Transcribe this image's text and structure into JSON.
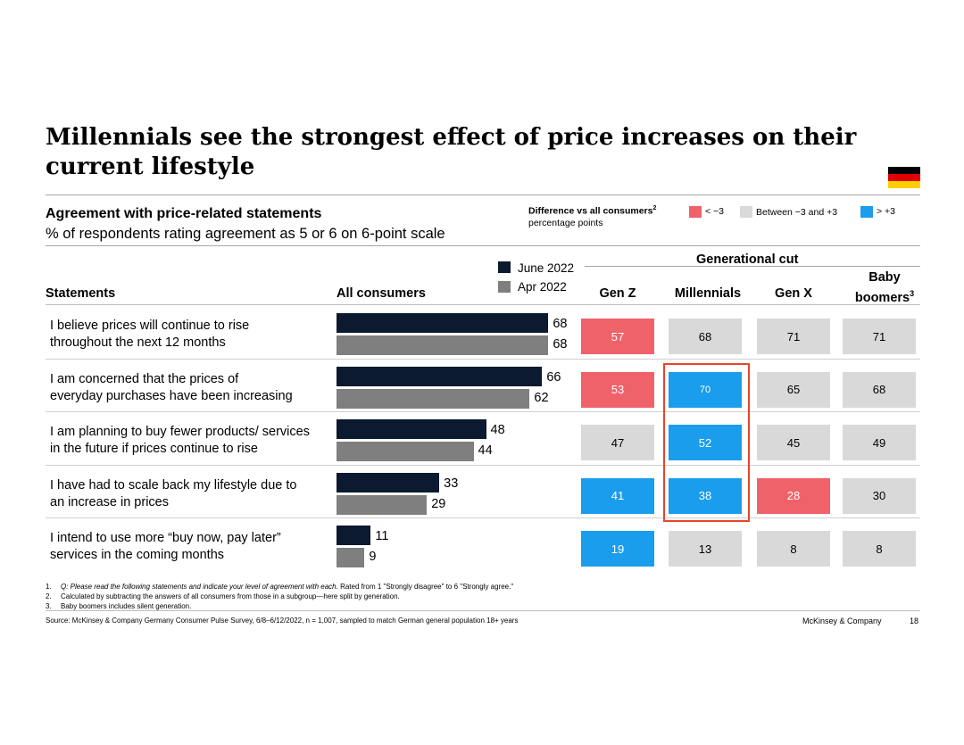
{
  "title": "Millennials see the strongest effect of price increases on their current lifestyle",
  "colors": {
    "june": "#0b1a2e",
    "april": "#7f7f7f",
    "low": "#f0626a",
    "mid": "#d9d9d9",
    "high": "#1a9dec",
    "highlight": "#e8442a"
  },
  "flag": {
    "icon": "germany-flag-icon",
    "stripes": [
      "#000000",
      "#dd0000",
      "#ffce00"
    ]
  },
  "subtitle": "Agreement with price-related statements",
  "subtitle2": "% of respondents rating agreement as 5 or 6 on 6-point scale",
  "diff_legend": {
    "title": "Difference vs all consumers",
    "title_sup": "2",
    "unit": "percentage points",
    "items": [
      {
        "key": "low",
        "label": "< −3"
      },
      {
        "key": "mid",
        "label": "Between −3 and +3"
      },
      {
        "key": "high",
        "label": "> +3"
      }
    ]
  },
  "headers": {
    "statements": "Statements",
    "all_consumers": "All consumers",
    "generational_cut": "Generational cut",
    "gen_z": "Gen Z",
    "millennials": "Millennials",
    "gen_x": "Gen X",
    "boomers_line1": "Baby",
    "boomers_line2": "boomers",
    "boomers_sup": "3"
  },
  "chart_data": {
    "type": "bar",
    "orientation": "horizontal",
    "title": "Agreement with price-related statements",
    "unit": "% of respondents rating agreement as 5 or 6 on 6-point scale",
    "xlim": [
      0,
      100
    ],
    "legend": [
      "June 2022",
      "Apr 2022"
    ],
    "categories": [
      "I believe prices will continue to rise throughout the next 12 months",
      "I am concerned that the prices of everyday purchases have been increasing",
      "I am planning to buy fewer products/ services in the future if prices continue to rise",
      "I have had to scale back my lifestyle due to an increase in prices",
      "I intend to use more “buy now, pay later” services in the coming months"
    ],
    "category_lines": [
      [
        "I believe prices will continue to rise",
        "throughout the next 12 months"
      ],
      [
        "I am concerned that the prices of",
        "everyday purchases have been increasing"
      ],
      [
        "I am planning to buy fewer products/ services",
        "in the future if prices continue to rise"
      ],
      [
        "I have had to scale back my lifestyle due to",
        "an increase in prices"
      ],
      [
        "I intend to use more “buy now, pay later”",
        "services in the coming months"
      ]
    ],
    "series": [
      {
        "name": "June 2022",
        "values": [
          68,
          66,
          48,
          33,
          11
        ]
      },
      {
        "name": "Apr 2022",
        "values": [
          68,
          62,
          44,
          29,
          9
        ]
      }
    ],
    "generational_cut": {
      "columns": [
        "Gen Z",
        "Millennials",
        "Gen X",
        "Baby boomers"
      ],
      "values": [
        [
          57,
          68,
          71,
          71
        ],
        [
          53,
          70,
          65,
          68
        ],
        [
          47,
          52,
          45,
          49
        ],
        [
          41,
          38,
          28,
          30
        ],
        [
          19,
          13,
          8,
          8
        ]
      ],
      "categories": [
        [
          "low",
          "mid",
          "mid",
          "mid"
        ],
        [
          "low",
          "high",
          "mid",
          "mid"
        ],
        [
          "mid",
          "high",
          "mid",
          "mid"
        ],
        [
          "high",
          "high",
          "low",
          "mid"
        ],
        [
          "high",
          "mid",
          "mid",
          "mid"
        ]
      ],
      "highlighted_column": "Millennials",
      "highlighted_rows": [
        2,
        3,
        4
      ]
    }
  },
  "footnotes": [
    {
      "n": "1.",
      "italic": "Q: Please read the following statements and indicate your level of agreement with each.",
      "text": " Rated from 1 \"Strongly disagree\" to 6 \"Strongly agree.\""
    },
    {
      "n": "2.",
      "italic": "",
      "text": "Calculated by subtracting the answers of all consumers from those in a subgroup—here split by generation."
    },
    {
      "n": "3.",
      "italic": "",
      "text": "Baby boomers includes silent generation."
    }
  ],
  "source": "Source: McKinsey & Company Germany Consumer Pulse Survey, 6/8–6/12/2022, n = 1,007, sampled to match German general population 18+ years",
  "brand": "McKinsey & Company",
  "page_number": "18"
}
